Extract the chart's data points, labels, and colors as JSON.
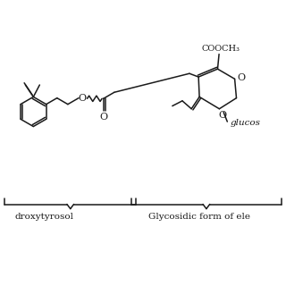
{
  "background_color": "#ffffff",
  "line_color": "#1a1a1a",
  "text_color": "#1a1a1a",
  "label1": "droxytyrosol",
  "label2": "Glycosidic form of ele",
  "cooch3": "COOCH₃",
  "glucose_label": "glucos",
  "figsize": [
    3.2,
    3.2
  ],
  "dpi": 100,
  "lw": 1.1
}
